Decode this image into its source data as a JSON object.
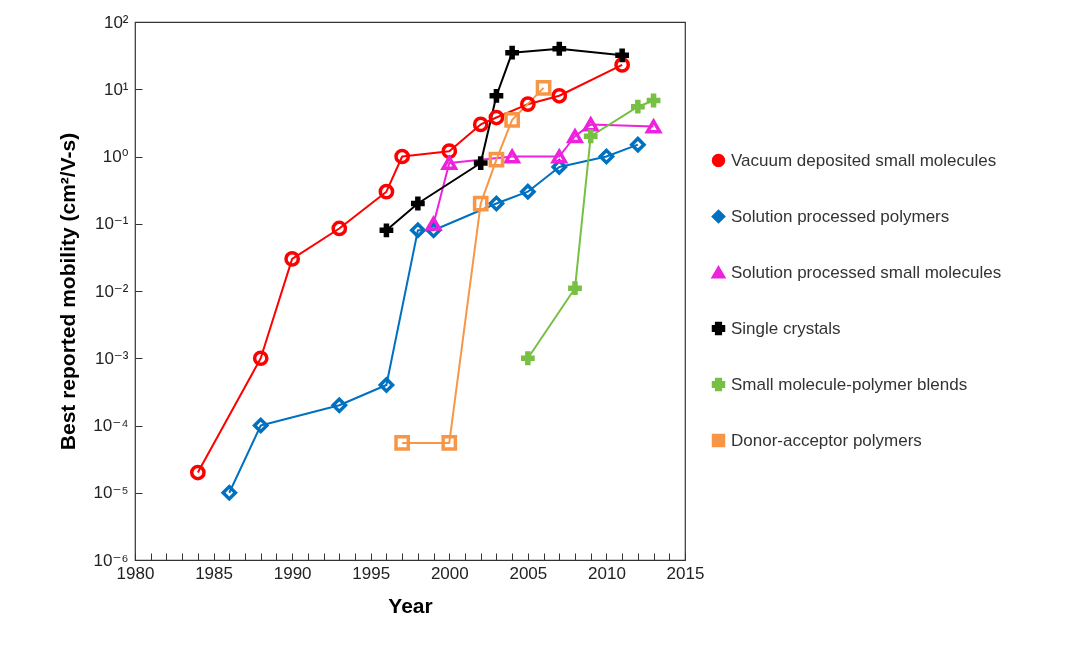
{
  "chart_data": {
    "type": "line",
    "xlabel": "Year",
    "ylabel": "Best reported mobility (cm²/V-s)",
    "log": "y",
    "grid": false,
    "legend": "right",
    "xlim": [
      1980,
      2015
    ],
    "xticks": [
      1980,
      {
        "value": 1981,
        "label": null
      },
      {
        "value": 1982,
        "label": null
      },
      {
        "value": 1983,
        "label": null
      },
      {
        "value": 1984,
        "label": null
      },
      1985,
      {
        "value": 1986,
        "label": null
      },
      {
        "value": 1987,
        "label": null
      },
      {
        "value": 1988,
        "label": null
      },
      {
        "value": 1989,
        "label": null
      },
      1990,
      {
        "value": 1991,
        "label": null
      },
      {
        "value": 1992,
        "label": null
      },
      {
        "value": 1993,
        "label": null
      },
      {
        "value": 1994,
        "label": null
      },
      1995,
      {
        "value": 1996,
        "label": null
      },
      {
        "value": 1997,
        "label": null
      },
      {
        "value": 1998,
        "label": null
      },
      {
        "value": 1999,
        "label": null
      },
      2000,
      {
        "value": 2001,
        "label": null
      },
      {
        "value": 2002,
        "label": null
      },
      {
        "value": 2003,
        "label": null
      },
      {
        "value": 2004,
        "label": null
      },
      2005,
      {
        "value": 2006,
        "label": null
      },
      {
        "value": 2007,
        "label": null
      },
      {
        "value": 2008,
        "label": null
      },
      {
        "value": 2009,
        "label": null
      },
      2010,
      {
        "value": 2011,
        "label": null
      },
      {
        "value": 2012,
        "label": null
      },
      {
        "value": 2013,
        "label": null
      },
      {
        "value": 2014,
        "label": null
      },
      2015
    ],
    "ylim": [
      1e-06,
      100
    ],
    "yticks": [
      {
        "value": 1e-06,
        "label": "10⁻⁶"
      },
      {
        "value": 1e-05,
        "label": "10⁻⁵"
      },
      {
        "value": 0.0001,
        "label": "10⁻⁴"
      },
      {
        "value": 0.001,
        "label": "10⁻³"
      },
      {
        "value": 0.01,
        "label": "10⁻²"
      },
      {
        "value": 0.1,
        "label": "10⁻¹"
      },
      {
        "value": 1,
        "label": "10⁰"
      },
      {
        "value": 10,
        "label": "10¹"
      },
      {
        "value": 100,
        "label": "10²"
      }
    ],
    "series": [
      {
        "name": "Vacuum deposited small molecules",
        "color": "#ff0000",
        "marker": "circle",
        "x": [
          1984,
          1988,
          1990,
          1993,
          1996,
          1997,
          2000,
          2002,
          2003,
          2005,
          2007,
          2011
        ],
        "values": [
          2e-05,
          0.001,
          0.03,
          0.085,
          0.3,
          1,
          1.2,
          3,
          3.8,
          6,
          8,
          23
        ]
      },
      {
        "name": "Solution processed polymers",
        "color": "#0070c0",
        "marker": "diamond",
        "x": [
          1986,
          1988,
          1993,
          1996,
          1998,
          1999,
          2003,
          2005,
          2007,
          2010,
          2012
        ],
        "values": [
          1e-05,
          0.0001,
          0.0002,
          0.0004,
          0.08,
          0.08,
          0.2,
          0.3,
          0.7,
          1,
          1.5
        ]
      },
      {
        "name": "Solution processed small molecules",
        "color": "#ee22dd",
        "marker": "triangle",
        "x": [
          1999,
          2000,
          2004,
          2007,
          2008,
          2009,
          2013
        ],
        "values": [
          0.1,
          0.8,
          1,
          1,
          2,
          3,
          2.8
        ]
      },
      {
        "name": "Single crystals",
        "color": "#000000",
        "marker": "cross",
        "x": [
          1996,
          1998,
          2002,
          2003,
          2004,
          2007,
          2011
        ],
        "values": [
          0.08,
          0.2,
          0.8,
          8,
          35,
          40,
          32
        ]
      },
      {
        "name": "Small molecule-polymer blends",
        "color": "#77c043",
        "marker": "cross",
        "x": [
          2005,
          2008,
          2009,
          2012,
          2013
        ],
        "values": [
          0.001,
          0.011,
          2,
          5.5,
          6.8
        ]
      },
      {
        "name": "Donor-acceptor polymers",
        "color": "#f79646",
        "marker": "square",
        "x": [
          1997,
          2000,
          2002,
          2003,
          2004,
          2006
        ],
        "values": [
          5.5e-05,
          5.5e-05,
          0.2,
          0.9,
          3.5,
          10.5
        ]
      }
    ]
  }
}
